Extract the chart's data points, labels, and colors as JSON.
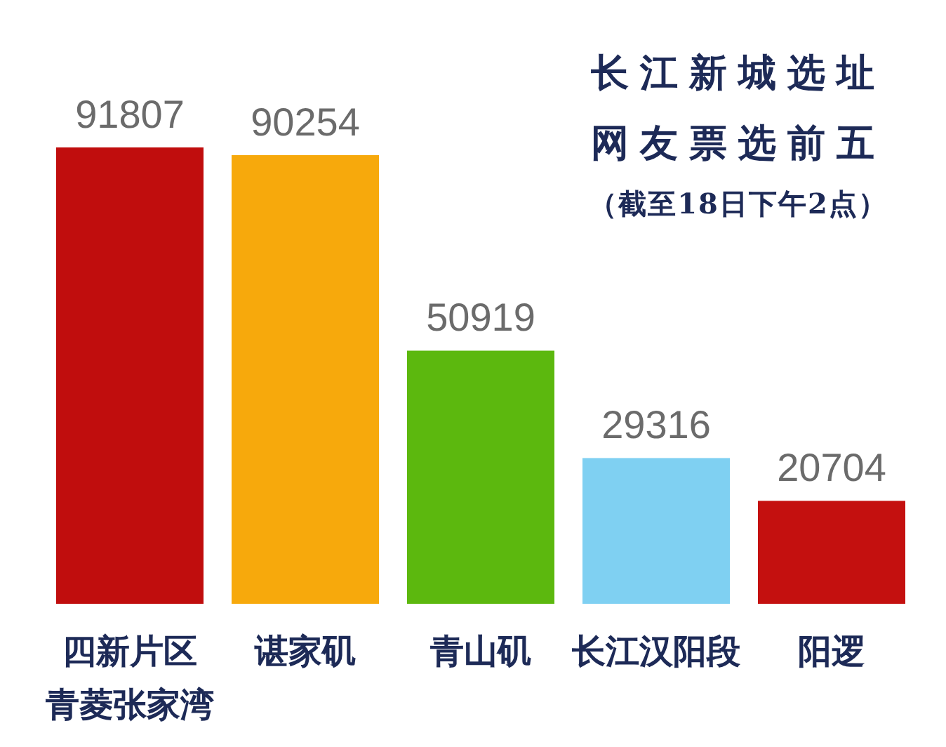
{
  "chart_data": {
    "type": "bar",
    "title": "长江新城选址网友票选前五",
    "subtitle": "（截至18日下午2点）",
    "categories": [
      "四新片区青菱张家湾",
      "谌家矶",
      "青山矶",
      "长江汉阳段",
      "阳逻"
    ],
    "values": [
      91807,
      90254,
      50919,
      29316,
      20704
    ],
    "colors": [
      "#c00d0d",
      "#f7a90c",
      "#5cb80e",
      "#7fd0f2",
      "#c4100f"
    ],
    "data_labels": true
  }
}
